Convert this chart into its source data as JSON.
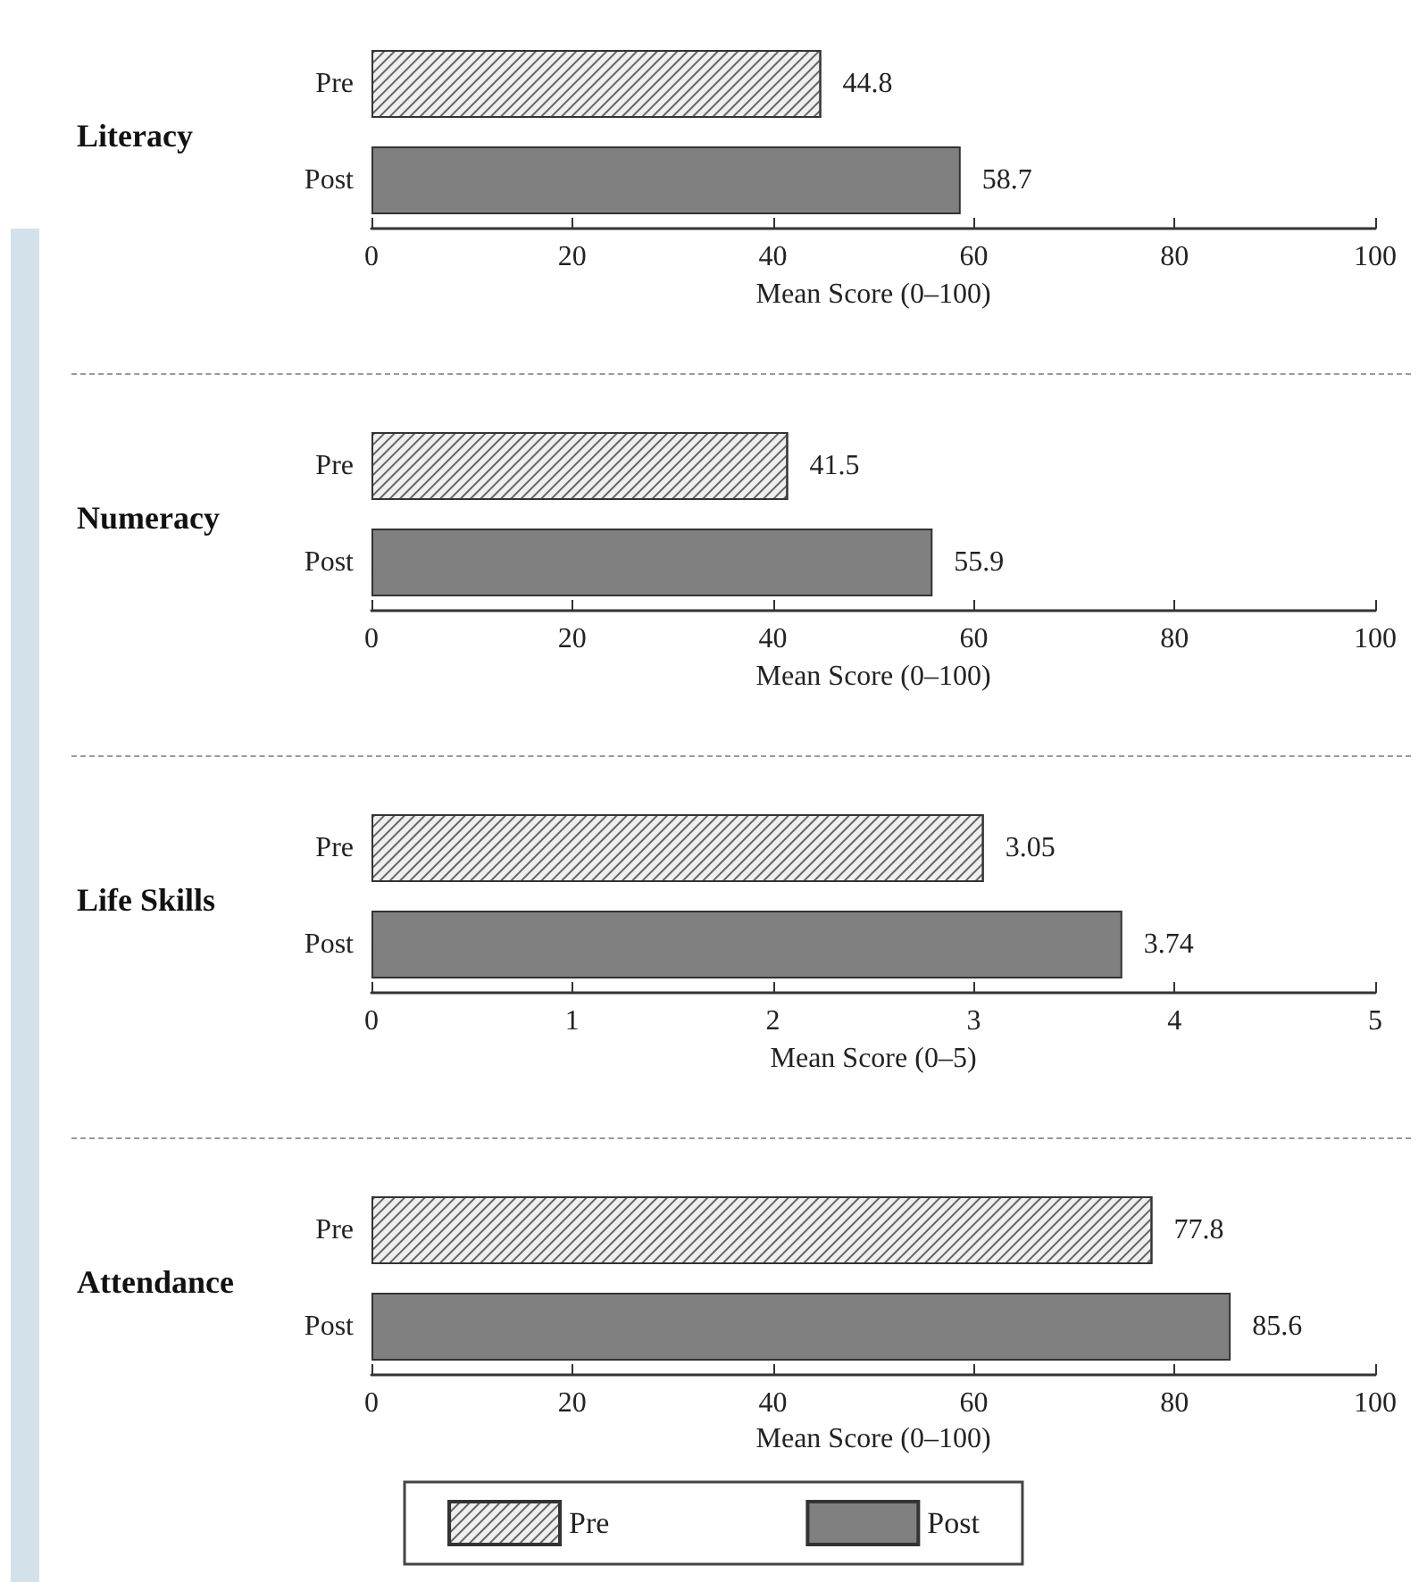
{
  "chart_data": [
    {
      "type": "bar",
      "orientation": "horizontal",
      "title": "Literacy",
      "categories": [
        "Pre",
        "Post"
      ],
      "xlabel": "Mean Score (0–100)",
      "xlim": [
        0,
        100
      ],
      "xticks": [
        0,
        20,
        40,
        60,
        80,
        100
      ],
      "data_labels": true,
      "grid": false,
      "series": [
        {
          "color": "#efefef",
          "values": [
            44.8,
            null
          ]
        },
        {
          "color": "#808080",
          "values": [
            null,
            58.7
          ]
        }
      ]
    },
    {
      "type": "bar",
      "orientation": "horizontal",
      "title": "Numeracy",
      "categories": [
        "Pre",
        "Post"
      ],
      "xlabel": "Mean Score (0–100)",
      "xlim": [
        0,
        100
      ],
      "xticks": [
        0,
        20,
        40,
        60,
        80,
        100
      ],
      "data_labels": true,
      "grid": false,
      "series": [
        {
          "color": "#efefef",
          "values": [
            41.5,
            null
          ]
        },
        {
          "color": "#808080",
          "values": [
            null,
            55.9
          ]
        }
      ]
    },
    {
      "type": "bar",
      "orientation": "horizontal",
      "title": "Life Skills",
      "categories": [
        "Pre",
        "Post"
      ],
      "xlabel": "Mean Score (0–5)",
      "xlim": [
        0,
        5
      ],
      "xticks": [
        0,
        1,
        2,
        3,
        4,
        5
      ],
      "data_labels": true,
      "grid": false,
      "series": [
        {
          "color": "#efefef",
          "values": [
            3.05,
            null
          ]
        },
        {
          "color": "#808080",
          "values": [
            null,
            3.74
          ]
        }
      ]
    },
    {
      "type": "bar",
      "orientation": "horizontal",
      "title": "Attendance",
      "categories": [
        "Pre",
        "Post"
      ],
      "xlabel": "Mean Score (0–100)",
      "xlim": [
        0,
        100
      ],
      "xticks": [
        0,
        20,
        40,
        60,
        80,
        100
      ],
      "data_labels": true,
      "grid": false,
      "legend": "bottom",
      "series": [
        {
          "name": "Pre",
          "color": "#efefef",
          "values": [
            77.8,
            null
          ]
        },
        {
          "name": "Post",
          "color": "#808080",
          "values": [
            null,
            85.6
          ]
        }
      ]
    }
  ]
}
